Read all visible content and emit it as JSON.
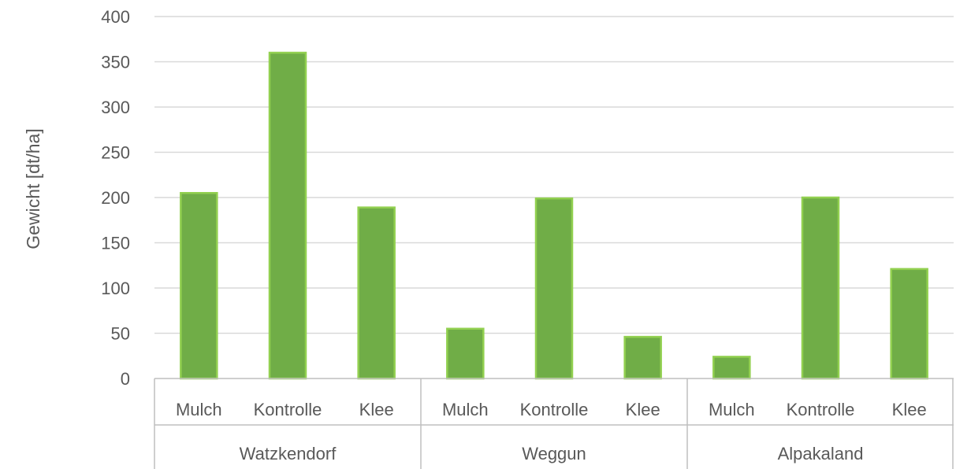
{
  "chart_data": {
    "type": "bar",
    "title": "",
    "xlabel": "",
    "ylabel": "Gewicht [dt/ha]",
    "ylim": [
      0,
      400
    ],
    "yticks": [
      0,
      50,
      100,
      150,
      200,
      250,
      300,
      350,
      400
    ],
    "grid": true,
    "legend": "none",
    "groups": [
      {
        "name": "Watzkendorf",
        "categories": [
          "Mulch",
          "Kontrolle",
          "Klee"
        ],
        "values": [
          205,
          360,
          189
        ]
      },
      {
        "name": "Weggun",
        "categories": [
          "Mulch",
          "Kontrolle",
          "Klee"
        ],
        "values": [
          55,
          199,
          46
        ]
      },
      {
        "name": "Alpakaland",
        "categories": [
          "Mulch",
          "Kontrolle",
          "Klee"
        ],
        "values": [
          24,
          200,
          121
        ]
      }
    ],
    "colors": {
      "bar_fill": "#70ad47",
      "bar_stroke": "#92d050",
      "grid": "#d9d9d9",
      "axis": "#bfbfbf",
      "text": "#595959"
    }
  }
}
